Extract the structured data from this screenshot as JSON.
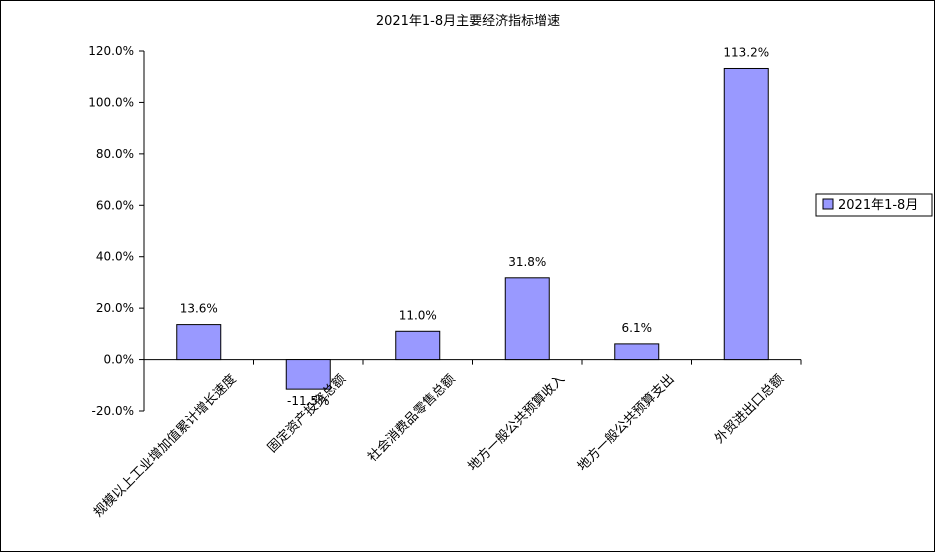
{
  "chart_data": {
    "type": "bar",
    "title": "2021年1-8月主要经济指标增速",
    "categories": [
      "规模以上工业增加值累计增长速度",
      "固定资产投资总额",
      "社会消费品零售总额",
      "地方一般公共预算收入",
      "地方一般公共预算支出",
      "外贸进出口总额"
    ],
    "series": [
      {
        "name": "2021年1-8月",
        "values": [
          13.6,
          -11.5,
          11.0,
          31.8,
          6.1,
          113.2
        ],
        "labels": [
          "13.6%",
          "-11.5%",
          "11.0%",
          "31.8%",
          "6.1%",
          "113.2%"
        ],
        "color": "#9999ff"
      }
    ],
    "ylim": [
      -20,
      120
    ],
    "yticks": [
      -20,
      0,
      20,
      40,
      60,
      80,
      100,
      120
    ],
    "ytick_labels": [
      "-20.0%",
      "0.0%",
      "20.0%",
      "40.0%",
      "60.0%",
      "80.0%",
      "100.0%",
      "120.0%"
    ],
    "xlabel": "",
    "ylabel": "",
    "grid": false,
    "legend_position": "right"
  }
}
